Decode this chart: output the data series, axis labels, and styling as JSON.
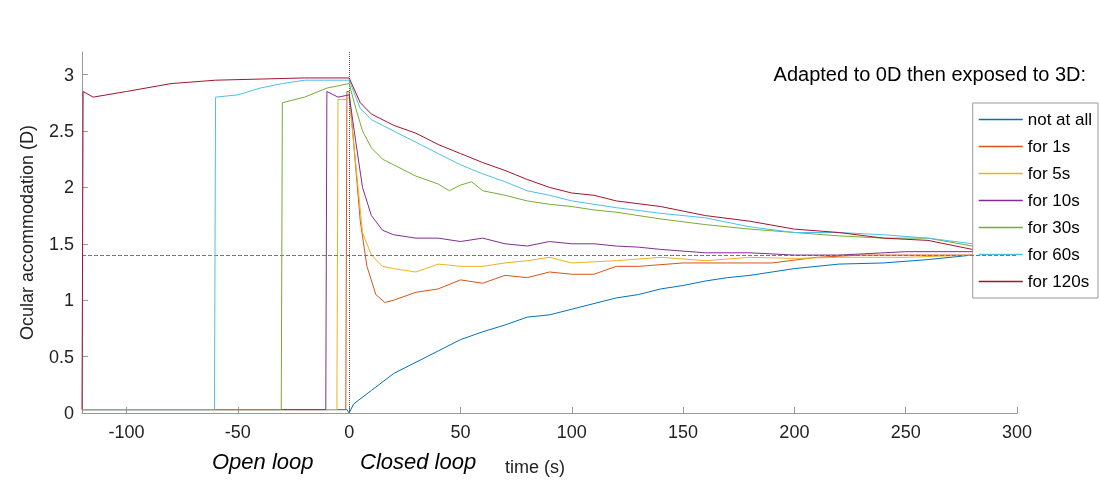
{
  "chart_data": {
    "type": "line",
    "xlabel": "time (s)",
    "ylabel": "Ocular accommodation (D)",
    "legend_title": "Adapted to 0D then exposed to 3D:",
    "annotations": [
      "Open loop",
      "Closed loop"
    ],
    "xlim": [
      -120,
      300
    ],
    "xticks": [
      -100,
      -50,
      0,
      50,
      100,
      150,
      200,
      250,
      300
    ],
    "ylim": [
      0,
      3.2
    ],
    "yticks": [
      0,
      0.5,
      1,
      1.5,
      2,
      2.5,
      3
    ],
    "grid": false,
    "legend": "right",
    "marker": "none",
    "line_style": "solid",
    "ref_lines": [
      {
        "axis": "x",
        "value": 0,
        "label": null,
        "color": "#555555",
        "line_style": "dotted"
      },
      {
        "axis": "y",
        "value": 1.4,
        "label": null,
        "color": "#777777",
        "line_style": "dashed"
      }
    ],
    "series": [
      {
        "name": "not at all",
        "color": "#0072bd",
        "x": [
          -120,
          -60,
          -1,
          0,
          2,
          10,
          20,
          30,
          40,
          50,
          60,
          70,
          80,
          90,
          100,
          110,
          120,
          130,
          140,
          150,
          160,
          170,
          180,
          190,
          200,
          220,
          240,
          260,
          280
        ],
        "values": [
          0.03,
          0.03,
          0.03,
          0.0,
          0.08,
          0.2,
          0.35,
          0.45,
          0.55,
          0.65,
          0.72,
          0.78,
          0.85,
          0.87,
          0.92,
          0.97,
          1.02,
          1.05,
          1.1,
          1.13,
          1.17,
          1.2,
          1.22,
          1.25,
          1.28,
          1.32,
          1.33,
          1.36,
          1.4
        ]
      },
      {
        "name": "for 1s",
        "color": "#d95319",
        "x": [
          -120,
          -60,
          -1.5,
          -1,
          0,
          2,
          5,
          8,
          12,
          16,
          20,
          30,
          40,
          50,
          60,
          70,
          80,
          90,
          100,
          110,
          120,
          130,
          150,
          170,
          190,
          210,
          230,
          250,
          280
        ],
        "values": [
          0.03,
          0.03,
          0.03,
          2.85,
          2.85,
          2.4,
          1.7,
          1.3,
          1.05,
          0.98,
          1.0,
          1.07,
          1.1,
          1.18,
          1.15,
          1.22,
          1.2,
          1.25,
          1.23,
          1.23,
          1.3,
          1.3,
          1.33,
          1.33,
          1.33,
          1.38,
          1.4,
          1.4,
          1.4
        ]
      },
      {
        "name": "for 5s",
        "color": "#edb120",
        "x": [
          -120,
          -60,
          -5.5,
          -5,
          -1,
          0,
          3,
          6,
          10,
          15,
          20,
          30,
          40,
          50,
          60,
          70,
          80,
          90,
          100,
          120,
          140,
          160,
          180,
          200,
          220,
          250,
          280
        ],
        "values": [
          0.03,
          0.03,
          0.03,
          2.78,
          2.78,
          2.8,
          2.2,
          1.6,
          1.4,
          1.3,
          1.28,
          1.25,
          1.32,
          1.3,
          1.3,
          1.33,
          1.35,
          1.38,
          1.33,
          1.35,
          1.38,
          1.35,
          1.38,
          1.37,
          1.38,
          1.38,
          1.4
        ]
      },
      {
        "name": "for 10s",
        "color": "#7e2f8e",
        "x": [
          -120,
          -60,
          -10.5,
          -10,
          -5,
          0,
          3,
          6,
          10,
          15,
          20,
          30,
          40,
          50,
          60,
          70,
          80,
          90,
          100,
          110,
          120,
          130,
          140,
          160,
          180,
          200,
          220,
          250,
          280
        ],
        "values": [
          0.03,
          0.03,
          0.03,
          2.85,
          2.8,
          2.82,
          2.4,
          2.0,
          1.75,
          1.62,
          1.58,
          1.55,
          1.55,
          1.52,
          1.55,
          1.5,
          1.48,
          1.52,
          1.5,
          1.5,
          1.48,
          1.47,
          1.45,
          1.42,
          1.42,
          1.4,
          1.4,
          1.43,
          1.43
        ]
      },
      {
        "name": "for 30s",
        "color": "#77ac30",
        "x": [
          -120,
          -60,
          -30.5,
          -30,
          -20,
          -10,
          0,
          3,
          6,
          10,
          15,
          20,
          30,
          40,
          45,
          50,
          55,
          60,
          70,
          80,
          90,
          100,
          110,
          120,
          140,
          160,
          180,
          200,
          220,
          240,
          260,
          280
        ],
        "values": [
          0.03,
          0.03,
          0.03,
          2.75,
          2.8,
          2.88,
          2.92,
          2.7,
          2.5,
          2.35,
          2.25,
          2.2,
          2.1,
          2.03,
          1.97,
          2.02,
          2.05,
          1.97,
          1.93,
          1.88,
          1.85,
          1.83,
          1.8,
          1.78,
          1.72,
          1.67,
          1.63,
          1.6,
          1.57,
          1.55,
          1.55,
          1.48
        ]
      },
      {
        "name": "for 60s",
        "color": "#4dbeee",
        "x": [
          -120,
          -90,
          -60.5,
          -60,
          -50,
          -40,
          -30,
          -20,
          -10,
          0,
          5,
          10,
          20,
          30,
          40,
          50,
          60,
          70,
          80,
          90,
          100,
          120,
          140,
          160,
          180,
          200,
          220,
          240,
          260,
          280
        ],
        "values": [
          0.03,
          0.03,
          0.03,
          2.8,
          2.82,
          2.88,
          2.92,
          2.95,
          2.95,
          2.95,
          2.7,
          2.6,
          2.5,
          2.4,
          2.3,
          2.2,
          2.12,
          2.05,
          1.97,
          1.93,
          1.88,
          1.82,
          1.77,
          1.73,
          1.65,
          1.6,
          1.6,
          1.58,
          1.55,
          1.5
        ]
      },
      {
        "name": "for 120s",
        "color": "#a2142f",
        "x": [
          -120,
          -119.5,
          -115,
          -100,
          -80,
          -60,
          -40,
          -20,
          0,
          5,
          10,
          20,
          30,
          40,
          50,
          60,
          70,
          80,
          90,
          100,
          110,
          120,
          140,
          160,
          180,
          200,
          220,
          240,
          260,
          280
        ],
        "values": [
          0.03,
          2.85,
          2.8,
          2.85,
          2.92,
          2.95,
          2.96,
          2.97,
          2.97,
          2.75,
          2.65,
          2.55,
          2.48,
          2.38,
          2.3,
          2.22,
          2.15,
          2.07,
          2.0,
          1.95,
          1.93,
          1.88,
          1.83,
          1.75,
          1.7,
          1.63,
          1.6,
          1.55,
          1.53,
          1.45
        ]
      }
    ]
  }
}
